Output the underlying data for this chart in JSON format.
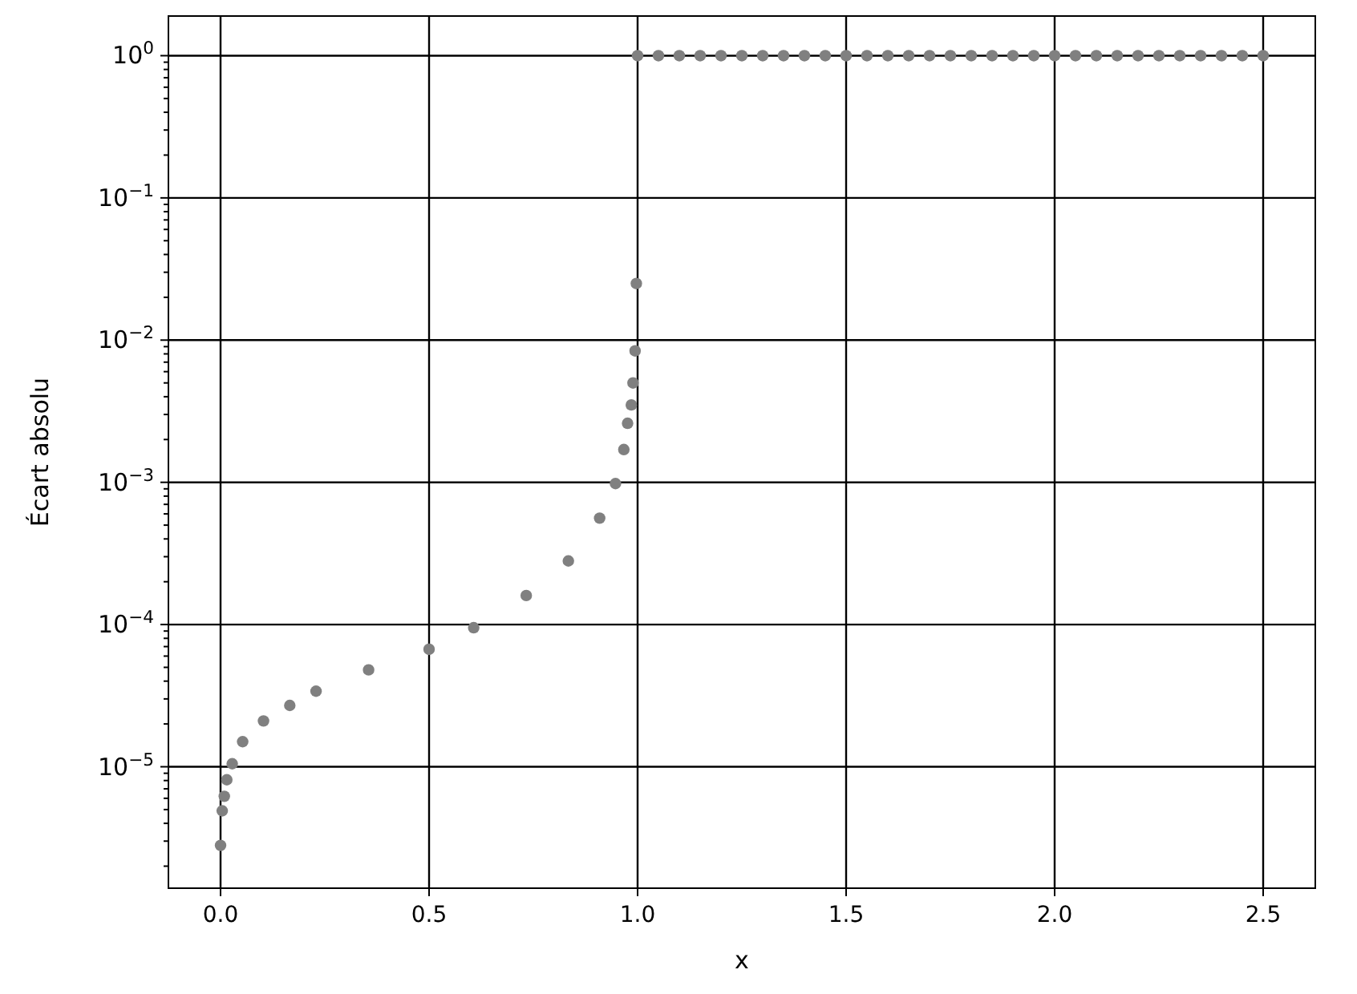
{
  "chart_data": {
    "type": "scatter",
    "xlabel": "x",
    "ylabel": "Écart absolu",
    "log": "y",
    "grid": true,
    "marker": "circle",
    "xlim": [
      -0.125,
      2.625
    ],
    "xticks": [
      {
        "value": 0,
        "label": "0.0"
      },
      {
        "value": 0.5,
        "label": "0.5"
      },
      {
        "value": 1,
        "label": "1.0"
      },
      {
        "value": 1.5,
        "label": "1.5"
      },
      {
        "value": 2,
        "label": "2.0"
      },
      {
        "value": 2.5,
        "label": "2.5"
      }
    ],
    "ylim": [
      1.4e-06,
      1.9
    ],
    "yticks": [
      {
        "value": 1e-05,
        "label": "10$^{−5}$"
      },
      {
        "value": 0.0001,
        "label": "10$^{−4}$"
      },
      {
        "value": 0.001,
        "label": "10$^{−3}$"
      },
      {
        "value": 0.01,
        "label": "10$^{−2}$"
      },
      {
        "value": 0.1,
        "label": "10$^{−1}$"
      },
      {
        "value": 1,
        "label": "10$^{0}$"
      },
      {
        "value": 2e-06,
        "label": null
      },
      {
        "value": 3e-06,
        "label": null
      },
      {
        "value": 4e-06,
        "label": null
      },
      {
        "value": 5e-06,
        "label": null
      },
      {
        "value": 6e-06,
        "label": null
      },
      {
        "value": 7e-06,
        "label": null
      },
      {
        "value": 8e-06,
        "label": null
      },
      {
        "value": 9e-06,
        "label": null
      },
      {
        "value": 2e-05,
        "label": null
      },
      {
        "value": 3e-05,
        "label": null
      },
      {
        "value": 4e-05,
        "label": null
      },
      {
        "value": 5e-05,
        "label": null
      },
      {
        "value": 6e-05,
        "label": null
      },
      {
        "value": 7e-05,
        "label": null
      },
      {
        "value": 8e-05,
        "label": null
      },
      {
        "value": 9e-05,
        "label": null
      },
      {
        "value": 0.0002,
        "label": null
      },
      {
        "value": 0.0003,
        "label": null
      },
      {
        "value": 0.0004,
        "label": null
      },
      {
        "value": 0.0005,
        "label": null
      },
      {
        "value": 0.0006,
        "label": null
      },
      {
        "value": 0.0007,
        "label": null
      },
      {
        "value": 0.0008,
        "label": null
      },
      {
        "value": 0.0009,
        "label": null
      },
      {
        "value": 0.002,
        "label": null
      },
      {
        "value": 0.003,
        "label": null
      },
      {
        "value": 0.004,
        "label": null
      },
      {
        "value": 0.005,
        "label": null
      },
      {
        "value": 0.006,
        "label": null
      },
      {
        "value": 0.007,
        "label": null
      },
      {
        "value": 0.008,
        "label": null
      },
      {
        "value": 0.009,
        "label": null
      },
      {
        "value": 0.02,
        "label": null
      },
      {
        "value": 0.03,
        "label": null
      },
      {
        "value": 0.04,
        "label": null
      },
      {
        "value": 0.05,
        "label": null
      },
      {
        "value": 0.06,
        "label": null
      },
      {
        "value": 0.07,
        "label": null
      },
      {
        "value": 0.08,
        "label": null
      },
      {
        "value": 0.09,
        "label": null
      },
      {
        "value": 0.2,
        "label": null
      },
      {
        "value": 0.3,
        "label": null
      },
      {
        "value": 0.4,
        "label": null
      },
      {
        "value": 0.5,
        "label": null
      },
      {
        "value": 0.6,
        "label": null
      },
      {
        "value": 0.7,
        "label": null
      },
      {
        "value": 0.8,
        "label": null
      },
      {
        "value": 0.9,
        "label": null
      }
    ],
    "series": [
      {
        "color": "#808080",
        "x": [
          0,
          0.004,
          0.009,
          0.015,
          0.028,
          0.053,
          0.103,
          0.166,
          0.229,
          0.355,
          0.5,
          0.607,
          0.733,
          0.834,
          0.909,
          0.947,
          0.967,
          0.976,
          0.985,
          0.989,
          0.994,
          0.997,
          1,
          1.05,
          1.1,
          1.15,
          1.2,
          1.25,
          1.3,
          1.35,
          1.4,
          1.45,
          1.5,
          1.55,
          1.6,
          1.65,
          1.7,
          1.75,
          1.8,
          1.85,
          1.9,
          1.95,
          2,
          2.05,
          2.1,
          2.15,
          2.2,
          2.25,
          2.3,
          2.35,
          2.4,
          2.45,
          2.5
        ],
        "values": [
          2.8e-06,
          4.9e-06,
          6.2e-06,
          8.1e-06,
          1.05e-05,
          1.5e-05,
          2.1e-05,
          2.7e-05,
          3.4e-05,
          4.8e-05,
          6.7e-05,
          9.5e-05,
          0.00016,
          0.00028,
          0.00056,
          0.00098,
          0.0017,
          0.0026,
          0.0035,
          0.005,
          0.0084,
          0.025,
          1,
          1,
          1,
          1,
          1,
          1,
          1,
          1,
          1,
          1,
          1,
          1,
          1,
          1,
          1,
          1,
          1,
          1,
          1,
          1,
          1,
          1,
          1,
          1,
          1,
          1,
          1,
          1,
          1,
          1,
          1
        ]
      }
    ]
  }
}
